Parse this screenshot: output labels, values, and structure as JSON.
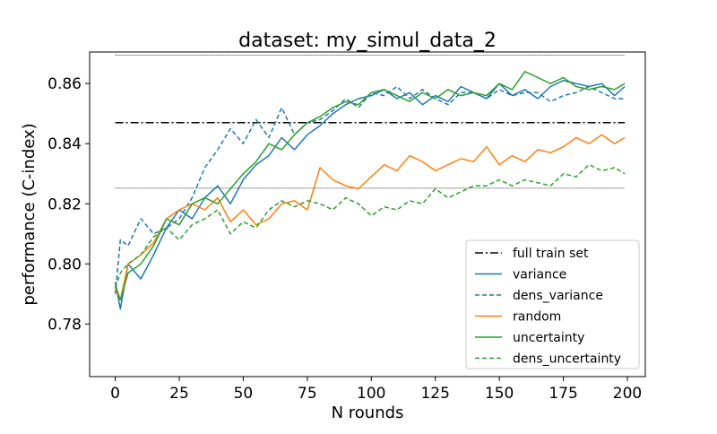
{
  "chart_data": {
    "type": "line",
    "title": "dataset: my_simul_data_2",
    "xlabel": "N rounds",
    "ylabel": "performance (C-index)",
    "xlim": [
      -10,
      207
    ],
    "ylim": [
      0.7625,
      0.8705
    ],
    "xticks": [
      0,
      25,
      50,
      75,
      100,
      125,
      150,
      175,
      200
    ],
    "yticks": [
      0.78,
      0.8,
      0.82,
      0.84,
      0.86
    ],
    "ytick_labels": [
      "0.78",
      "0.80",
      "0.82",
      "0.84",
      "0.86"
    ],
    "grid": false,
    "legend_position": "lower-right",
    "reference_lines": {
      "full_train_set": 0.847,
      "upper_dotted": 0.8695,
      "lower_dotted": 0.8252
    },
    "legend": [
      {
        "label": "full train set",
        "color": "#000000",
        "style": "dashdot"
      },
      {
        "label": "variance",
        "color": "#1f77b4",
        "style": "solid"
      },
      {
        "label": "dens_variance",
        "color": "#1f77b4",
        "style": "dashed"
      },
      {
        "label": "random",
        "color": "#ff7f0e",
        "style": "solid"
      },
      {
        "label": "uncertainty",
        "color": "#2ca02c",
        "style": "solid"
      },
      {
        "label": "dens_uncertainty",
        "color": "#2ca02c",
        "style": "dashed"
      }
    ],
    "series": [
      {
        "name": "variance",
        "color": "#1f77b4",
        "style": "solid",
        "x": [
          0,
          2,
          5,
          10,
          15,
          20,
          25,
          30,
          35,
          40,
          45,
          50,
          55,
          60,
          65,
          70,
          75,
          80,
          85,
          90,
          95,
          100,
          105,
          110,
          115,
          120,
          125,
          130,
          135,
          140,
          145,
          150,
          155,
          160,
          165,
          170,
          175,
          180,
          185,
          190,
          195,
          199
        ],
        "y": [
          0.794,
          0.785,
          0.8,
          0.795,
          0.803,
          0.812,
          0.818,
          0.815,
          0.822,
          0.826,
          0.82,
          0.828,
          0.833,
          0.836,
          0.842,
          0.838,
          0.843,
          0.846,
          0.85,
          0.853,
          0.855,
          0.856,
          0.858,
          0.855,
          0.857,
          0.853,
          0.856,
          0.854,
          0.859,
          0.857,
          0.855,
          0.86,
          0.856,
          0.858,
          0.855,
          0.859,
          0.861,
          0.86,
          0.859,
          0.86,
          0.856,
          0.859
        ]
      },
      {
        "name": "dens_variance",
        "color": "#1f77b4",
        "style": "dashed",
        "x": [
          0,
          2,
          5,
          10,
          15,
          20,
          25,
          30,
          35,
          40,
          45,
          50,
          55,
          60,
          65,
          70,
          75,
          80,
          85,
          90,
          95,
          100,
          105,
          110,
          115,
          120,
          125,
          130,
          135,
          140,
          145,
          150,
          155,
          160,
          165,
          170,
          175,
          180,
          185,
          190,
          195,
          199
        ],
        "y": [
          0.79,
          0.808,
          0.806,
          0.815,
          0.81,
          0.812,
          0.815,
          0.822,
          0.832,
          0.838,
          0.845,
          0.84,
          0.848,
          0.842,
          0.852,
          0.843,
          0.847,
          0.848,
          0.851,
          0.855,
          0.852,
          0.857,
          0.856,
          0.859,
          0.855,
          0.858,
          0.855,
          0.853,
          0.857,
          0.857,
          0.855,
          0.858,
          0.856,
          0.857,
          0.857,
          0.854,
          0.856,
          0.857,
          0.859,
          0.857,
          0.855,
          0.855
        ]
      },
      {
        "name": "random",
        "color": "#ff7f0e",
        "style": "solid",
        "x": [
          0,
          2,
          5,
          10,
          15,
          20,
          25,
          30,
          35,
          40,
          45,
          50,
          55,
          60,
          65,
          70,
          75,
          80,
          85,
          90,
          95,
          100,
          105,
          110,
          115,
          120,
          125,
          130,
          135,
          140,
          145,
          150,
          155,
          160,
          165,
          170,
          175,
          180,
          185,
          190,
          195,
          199
        ],
        "y": [
          0.792,
          0.788,
          0.8,
          0.803,
          0.807,
          0.815,
          0.818,
          0.82,
          0.818,
          0.822,
          0.814,
          0.818,
          0.813,
          0.815,
          0.82,
          0.821,
          0.818,
          0.832,
          0.828,
          0.826,
          0.825,
          0.829,
          0.833,
          0.831,
          0.836,
          0.834,
          0.831,
          0.833,
          0.835,
          0.834,
          0.839,
          0.833,
          0.836,
          0.834,
          0.838,
          0.837,
          0.839,
          0.842,
          0.84,
          0.843,
          0.84,
          0.842
        ]
      },
      {
        "name": "uncertainty",
        "color": "#2ca02c",
        "style": "solid",
        "x": [
          0,
          2,
          5,
          10,
          15,
          20,
          25,
          30,
          35,
          40,
          45,
          50,
          55,
          60,
          65,
          70,
          75,
          80,
          85,
          90,
          95,
          100,
          105,
          110,
          115,
          120,
          125,
          130,
          135,
          140,
          145,
          150,
          155,
          160,
          165,
          170,
          175,
          180,
          185,
          190,
          195,
          199
        ],
        "y": [
          0.793,
          0.788,
          0.797,
          0.8,
          0.806,
          0.815,
          0.813,
          0.82,
          0.822,
          0.82,
          0.825,
          0.83,
          0.834,
          0.84,
          0.838,
          0.843,
          0.847,
          0.849,
          0.852,
          0.854,
          0.853,
          0.857,
          0.858,
          0.856,
          0.854,
          0.857,
          0.855,
          0.858,
          0.856,
          0.857,
          0.856,
          0.86,
          0.858,
          0.864,
          0.862,
          0.86,
          0.862,
          0.859,
          0.858,
          0.859,
          0.858,
          0.86
        ]
      },
      {
        "name": "dens_uncertainty",
        "color": "#2ca02c",
        "style": "dashed",
        "x": [
          0,
          2,
          5,
          10,
          15,
          20,
          25,
          30,
          35,
          40,
          45,
          50,
          55,
          60,
          65,
          70,
          75,
          80,
          85,
          90,
          95,
          100,
          105,
          110,
          115,
          120,
          125,
          130,
          135,
          140,
          145,
          150,
          155,
          160,
          165,
          170,
          175,
          180,
          185,
          190,
          195,
          199
        ],
        "y": [
          0.792,
          0.797,
          0.8,
          0.803,
          0.809,
          0.812,
          0.808,
          0.813,
          0.815,
          0.818,
          0.81,
          0.814,
          0.812,
          0.818,
          0.821,
          0.819,
          0.821,
          0.82,
          0.818,
          0.822,
          0.82,
          0.816,
          0.819,
          0.818,
          0.821,
          0.82,
          0.825,
          0.822,
          0.824,
          0.826,
          0.826,
          0.828,
          0.826,
          0.828,
          0.827,
          0.826,
          0.83,
          0.829,
          0.833,
          0.831,
          0.832,
          0.83
        ]
      }
    ]
  }
}
